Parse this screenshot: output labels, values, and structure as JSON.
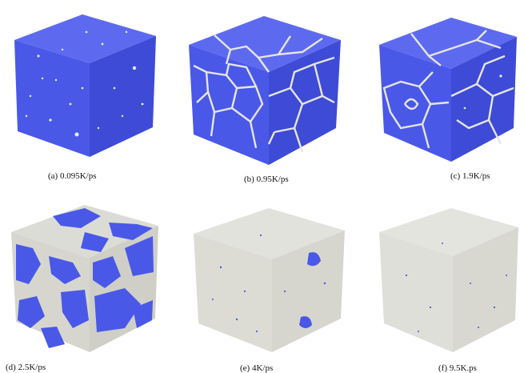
{
  "figure": {
    "panels": [
      {
        "id": "a",
        "caption": "(a) 0.095K/ps",
        "state": "crystalline-with-point-defects",
        "amorphous_fraction": 0.02
      },
      {
        "id": "b",
        "caption": "(b) 0.95K/ps",
        "state": "polycrystalline-thin-grain-boundaries",
        "amorphous_fraction": 0.12
      },
      {
        "id": "c",
        "caption": "(c) 1.9K/ps",
        "state": "polycrystalline-large-grains",
        "amorphous_fraction": 0.1
      },
      {
        "id": "d",
        "caption": "(d) 2.5K/ps",
        "state": "partially-amorphous-with-crystal-islands",
        "amorphous_fraction": 0.5
      },
      {
        "id": "e",
        "caption": "(e) 4K/ps",
        "state": "mostly-amorphous-few-crystal-nuclei",
        "amorphous_fraction": 0.96
      },
      {
        "id": "f",
        "caption": "(f) 9.5K.ps",
        "state": "fully-amorphous",
        "amorphous_fraction": 0.99
      }
    ],
    "colors": {
      "crystal": "#4a58e8",
      "amorphous": "#dcdcd6",
      "boundary": "#e6e6df"
    }
  }
}
